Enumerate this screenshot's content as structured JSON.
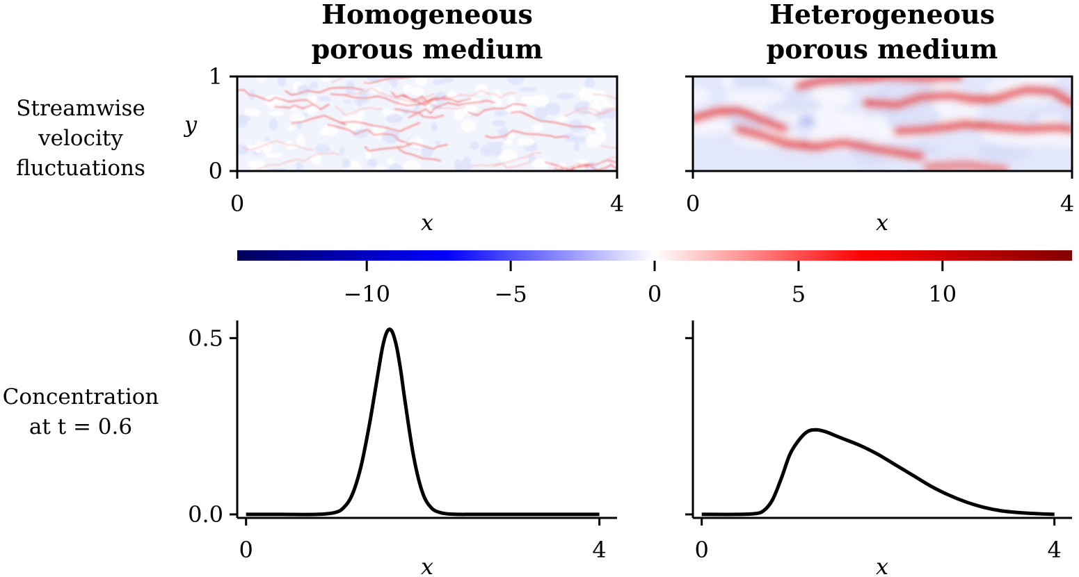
{
  "columns": [
    {
      "title_line1": "Homogeneous",
      "title_line2": "porous medium"
    },
    {
      "title_line1": "Heterogeneous",
      "title_line2": "porous medium"
    }
  ],
  "rows": [
    {
      "label_lines": [
        "Streamwise",
        "velocity",
        "fluctuations"
      ]
    },
    {
      "label_lines": [
        "Concentration",
        "at t = 0.6"
      ]
    }
  ],
  "colors": {
    "low": "#00005c",
    "mid_low": "#0000ff",
    "mid": "#ffffff",
    "mid_high": "#ff0000",
    "high": "#820000",
    "line": "#000000"
  },
  "chart_data": [
    {
      "type": "heatmap",
      "panel": "homogeneous-velocity",
      "xlabel": "x",
      "ylabel": "y",
      "xlim": [
        0,
        4
      ],
      "ylim": [
        0,
        1
      ],
      "xticks": [
        "0",
        "4"
      ],
      "yticks": [
        "0",
        "1"
      ],
      "texture": "fine"
    },
    {
      "type": "heatmap",
      "panel": "heterogeneous-velocity",
      "xlabel": "x",
      "xlim": [
        0,
        4
      ],
      "ylim": [
        0,
        1
      ],
      "xticks": [
        "0",
        "4"
      ],
      "texture": "channels"
    },
    {
      "type": "colorbar",
      "range": [
        -14.5,
        14.5
      ],
      "ticks": [
        -10,
        -5,
        0,
        5,
        10
      ],
      "tick_labels": [
        "−10",
        "−5",
        "0",
        "5",
        "10"
      ]
    },
    {
      "type": "line",
      "panel": "homogeneous-concentration",
      "xlabel": "x",
      "xlim": [
        -0.1,
        4.2
      ],
      "ylim": [
        -0.01,
        0.55
      ],
      "xticks": [
        "0",
        "4"
      ],
      "yticks": [
        "0.0",
        "0.5"
      ],
      "x": [
        0.0,
        0.4,
        0.8,
        1.0,
        1.1,
        1.2,
        1.3,
        1.4,
        1.5,
        1.55,
        1.6,
        1.65,
        1.7,
        1.75,
        1.8,
        1.9,
        2.0,
        2.1,
        2.2,
        2.3,
        2.4,
        2.6,
        3.0,
        3.5,
        4.0
      ],
      "y": [
        0.0,
        0.0,
        0.0,
        0.005,
        0.018,
        0.055,
        0.135,
        0.26,
        0.41,
        0.48,
        0.52,
        0.52,
        0.48,
        0.41,
        0.32,
        0.16,
        0.06,
        0.018,
        0.005,
        0.001,
        0.0,
        0.0,
        0.0,
        0.0,
        0.0
      ]
    },
    {
      "type": "line",
      "panel": "heterogeneous-concentration",
      "xlabel": "x",
      "xlim": [
        -0.1,
        4.2
      ],
      "ylim": [
        -0.01,
        0.55
      ],
      "xticks": [
        "0",
        "4"
      ],
      "x": [
        0.0,
        0.4,
        0.6,
        0.7,
        0.8,
        0.9,
        1.0,
        1.1,
        1.2,
        1.3,
        1.4,
        1.5,
        1.6,
        1.8,
        2.0,
        2.2,
        2.4,
        2.6,
        2.8,
        3.0,
        3.2,
        3.4,
        3.6,
        3.8,
        4.0
      ],
      "y": [
        0.0,
        0.0,
        0.002,
        0.01,
        0.04,
        0.1,
        0.17,
        0.21,
        0.235,
        0.24,
        0.235,
        0.225,
        0.215,
        0.195,
        0.17,
        0.14,
        0.11,
        0.08,
        0.055,
        0.035,
        0.02,
        0.01,
        0.005,
        0.002,
        0.0
      ]
    }
  ]
}
